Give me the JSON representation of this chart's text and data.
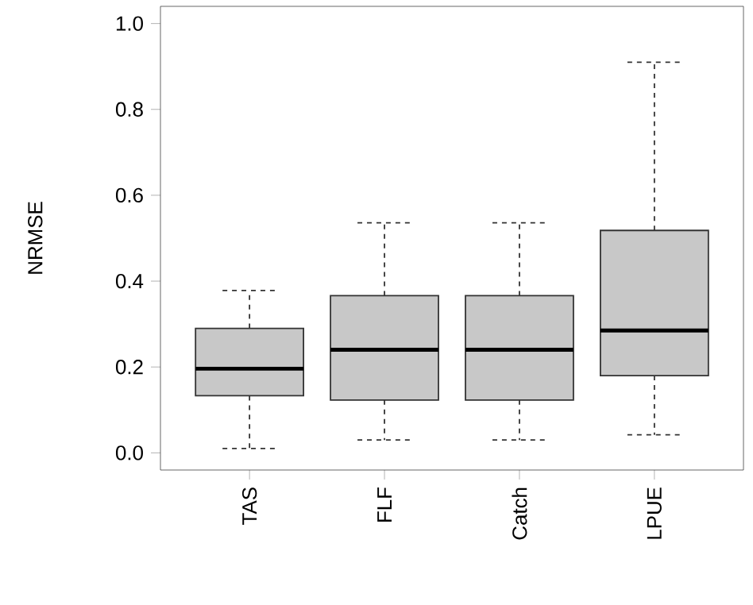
{
  "chart_data": {
    "type": "box",
    "ylabel": "NRMSE",
    "categories": [
      "TAS",
      "FLF",
      "Catch",
      "LPUE"
    ],
    "boxes": [
      {
        "low": 0.01,
        "q1": 0.133,
        "median": 0.196,
        "q3": 0.29,
        "high": 0.378
      },
      {
        "low": 0.03,
        "q1": 0.123,
        "median": 0.24,
        "q3": 0.366,
        "high": 0.536
      },
      {
        "low": 0.03,
        "q1": 0.123,
        "median": 0.24,
        "q3": 0.366,
        "high": 0.536
      },
      {
        "low": 0.042,
        "q1": 0.18,
        "median": 0.285,
        "q3": 0.518,
        "high": 0.91
      }
    ],
    "color": "#c8c8c8",
    "ylim": [
      -0.04,
      1.04
    ],
    "yticks": [
      {
        "value": 0,
        "label": "0.0"
      },
      0.2,
      0.4,
      0.6,
      0.8,
      {
        "value": 1,
        "label": "1.0"
      }
    ]
  }
}
